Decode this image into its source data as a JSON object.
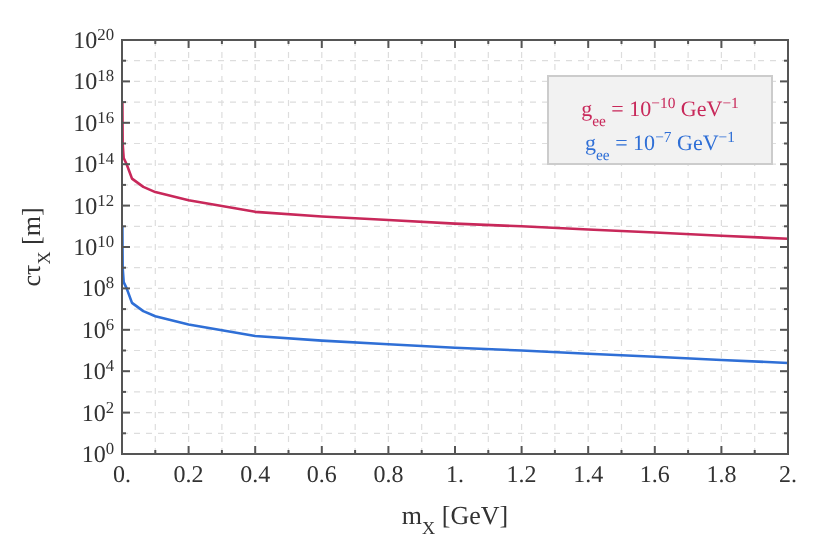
{
  "chart_data": {
    "type": "line",
    "xlabel": "m$_{X}$ [GeV]",
    "ylabel": "cτ$_{X}$ [m]",
    "log": "y",
    "grid": true,
    "legend": "top right",
    "line_style": "solid",
    "marker": "none",
    "xlim": [
      0,
      2
    ],
    "ylim": [
      1,
      1e+20
    ],
    "xticks": [
      {
        "value": 0,
        "label": "0."
      },
      {
        "value": 0.1,
        "label": null
      },
      {
        "value": 0.2,
        "label": "0.2"
      },
      {
        "value": 0.3,
        "label": null
      },
      {
        "value": 0.4,
        "label": "0.4"
      },
      {
        "value": 0.5,
        "label": null
      },
      {
        "value": 0.6,
        "label": "0.6"
      },
      {
        "value": 0.7,
        "label": null
      },
      {
        "value": 0.8,
        "label": "0.8"
      },
      {
        "value": 0.9,
        "label": null
      },
      {
        "value": 1,
        "label": "1."
      },
      {
        "value": 1.1,
        "label": null
      },
      {
        "value": 1.2,
        "label": "1.2"
      },
      {
        "value": 1.3,
        "label": null
      },
      {
        "value": 1.4,
        "label": "1.4"
      },
      {
        "value": 1.5,
        "label": null
      },
      {
        "value": 1.6,
        "label": "1.6"
      },
      {
        "value": 1.7,
        "label": null
      },
      {
        "value": 1.8,
        "label": "1.8"
      },
      {
        "value": 1.9,
        "label": null
      },
      {
        "value": 2,
        "label": "2."
      }
    ],
    "yticks": [
      {
        "value": 1,
        "label": "10$^{0}$"
      },
      {
        "value": 10,
        "label": null
      },
      {
        "value": 100,
        "label": "10$^{2}$"
      },
      {
        "value": 1000.0,
        "label": null
      },
      {
        "value": 10000.0,
        "label": "10$^{4}$"
      },
      {
        "value": 100000.0,
        "label": null
      },
      {
        "value": 1000000.0,
        "label": "10$^{6}$"
      },
      {
        "value": 10000000.0,
        "label": null
      },
      {
        "value": 100000000.0,
        "label": "10$^{8}$"
      },
      {
        "value": 1000000000.0,
        "label": null
      },
      {
        "value": 10000000000.0,
        "label": "10$^{10}$"
      },
      {
        "value": 100000000000.0,
        "label": null
      },
      {
        "value": 1000000000000.0,
        "label": "10$^{12}$"
      },
      {
        "value": 10000000000000.0,
        "label": null
      },
      {
        "value": 100000000000000.0,
        "label": "10$^{14}$"
      },
      {
        "value": 1000000000000000.0,
        "label": null
      },
      {
        "value": 1e+16,
        "label": "10$^{16}$"
      },
      {
        "value": 1e+17,
        "label": null
      },
      {
        "value": 1e+18,
        "label": "10$^{18}$"
      },
      {
        "value": 1e+19,
        "label": null
      },
      {
        "value": 1e+20,
        "label": "10$^{20}$"
      }
    ],
    "x": [
      0.0011,
      0.002,
      0.005,
      0.014,
      0.03,
      0.064,
      0.1,
      0.2,
      0.4,
      0.6,
      0.8,
      1.0,
      1.2,
      1.4,
      1.6,
      1.8,
      2.0
    ],
    "series": [
      {
        "name": "g$_{ee}$ = 10$^{−10}$ GeV$^{−1}$",
        "color": "#c8285a",
        "values": [
          1e+17,
          1000000000000000.0,
          200000000000000.0,
          100000000000000.0,
          20000000000000.0,
          8000000000000.0,
          4500000000000.0,
          1800000000000.0,
          500000000000.0,
          300000000000.0,
          200000000000.0,
          135000000000.0,
          100000000000.0,
          70000000000.0,
          50000000000.0,
          35000000000.0,
          25000000000.0
        ]
      },
      {
        "name": "g$_{ee}$ = 10$^{−7}$ GeV$^{−1}$",
        "color": "#2f6fd6",
        "values": [
          100000000000.0,
          1000000000.0,
          200000000.0,
          100000000.0,
          20000000.0,
          8000000.0,
          4500000.0,
          1800000.0,
          500000.0,
          300000.0,
          200000.0,
          135000.0,
          100000.0,
          70000.0,
          50000.0,
          35000.0,
          25000.0
        ]
      }
    ]
  }
}
